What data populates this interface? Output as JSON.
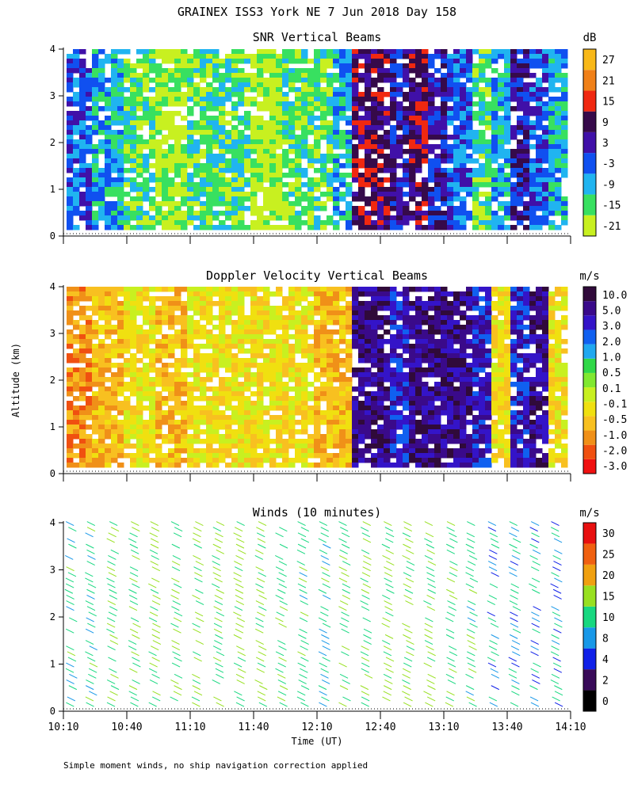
{
  "title": "GRAINEX ISS3 York NE   7 Jun 2018 Day 158",
  "ylabel": "Altitude (km)",
  "xlabel": "Time (UT)",
  "footnote": "Simple moment winds, no ship navigation correction applied",
  "x_ticks": [
    "10:10",
    "10:40",
    "11:10",
    "11:40",
    "12:10",
    "12:40",
    "13:10",
    "13:40",
    "14:10"
  ],
  "y_ticks": [
    "0",
    "1",
    "2",
    "3",
    "4"
  ],
  "colors": {
    "snr_scale": [
      "#c8f020",
      "#38e060",
      "#20b4f0",
      "#1050f0",
      "#4010a8",
      "#360a4a",
      "#f02810",
      "#f08018",
      "#f8b818"
    ],
    "velocity_scale": [
      "#f01010",
      "#f05010",
      "#f09018",
      "#f8c020",
      "#f0e010",
      "#c8f020",
      "#80e830",
      "#30d848",
      "#20a8f0",
      "#1060f0",
      "#3414c8",
      "#3a0a8a",
      "#300a3a"
    ],
    "wind_scale": [
      "#000000",
      "#380a58",
      "#1020e8",
      "#1898e8",
      "#18d880",
      "#98e020",
      "#f0a010",
      "#f06010",
      "#e81010"
    ]
  },
  "chart_data": [
    {
      "type": "heatmap",
      "title": "SNR Vertical Beams",
      "xlabel": "",
      "ylabel": "Altitude (km)",
      "x_range": [
        "10:10",
        "14:10"
      ],
      "y_range": [
        0,
        4
      ],
      "colorbar": {
        "unit": "dB",
        "labels": [
          "27",
          "21",
          "15",
          "9",
          "3",
          "-3",
          "-9",
          "-15",
          "-21"
        ]
      },
      "pattern": {
        "x_hours": [
          10.17,
          10.35,
          10.6,
          10.85,
          11.1,
          11.35,
          11.6,
          11.85,
          12.1,
          12.25,
          12.4,
          12.55,
          12.7,
          12.85,
          13.0,
          13.15,
          13.35,
          13.5,
          13.65,
          13.8,
          13.95,
          14.1
        ],
        "category_by_x": [
          3,
          2,
          1,
          0,
          1,
          1,
          0,
          1,
          1,
          2,
          5,
          5,
          4,
          5,
          4,
          3,
          1,
          2,
          4,
          3,
          2,
          3
        ]
      }
    },
    {
      "type": "heatmap",
      "title": "Doppler Velocity Vertical Beams",
      "xlabel": "",
      "ylabel": "Altitude (km)",
      "x_range": [
        "10:10",
        "14:10"
      ],
      "y_range": [
        0,
        4
      ],
      "colorbar": {
        "unit": "m/s",
        "labels": [
          "10.0",
          "5.0",
          "3.0",
          "2.0",
          "1.0",
          "0.5",
          "0.1",
          "-0.1",
          "-0.5",
          "-1.0",
          "-2.0",
          "-3.0"
        ]
      },
      "pattern": {
        "x_hours": [
          10.17,
          10.35,
          10.6,
          10.85,
          11.1,
          11.35,
          11.6,
          11.85,
          12.1,
          12.25,
          12.4,
          12.55,
          12.7,
          12.85,
          13.0,
          13.15,
          13.35,
          13.5,
          13.65,
          13.8,
          13.95,
          14.1
        ],
        "category_by_x": [
          2,
          3,
          4,
          3,
          4,
          4,
          4,
          4,
          3,
          3,
          11,
          11,
          10,
          11,
          11,
          11,
          10,
          4,
          10,
          11,
          4,
          11
        ]
      }
    },
    {
      "type": "scatter",
      "title": "Winds (10 minutes)",
      "xlabel": "Time (UT)",
      "ylabel": "Altitude (km)",
      "x_range": [
        "10:10",
        "14:10"
      ],
      "y_range": [
        0,
        4
      ],
      "colorbar": {
        "unit": "m/s",
        "labels": [
          "30",
          "25",
          "20",
          "15",
          "10",
          "8",
          "4",
          "2",
          "0"
        ]
      },
      "profile_times_hours": [
        10.17,
        10.33,
        10.5,
        10.67,
        10.83,
        11.0,
        11.17,
        11.33,
        11.5,
        11.67,
        11.83,
        12.0,
        12.17,
        12.33,
        12.5,
        12.67,
        12.83,
        13.0,
        13.17,
        13.33,
        13.5,
        13.67,
        13.83,
        14.0
      ],
      "typical_speed_ms": [
        12,
        12,
        14,
        14,
        15,
        15,
        15,
        15,
        16,
        16,
        14,
        13,
        12,
        14,
        15,
        16,
        16,
        15,
        14,
        12,
        10,
        10,
        9,
        10
      ]
    }
  ]
}
